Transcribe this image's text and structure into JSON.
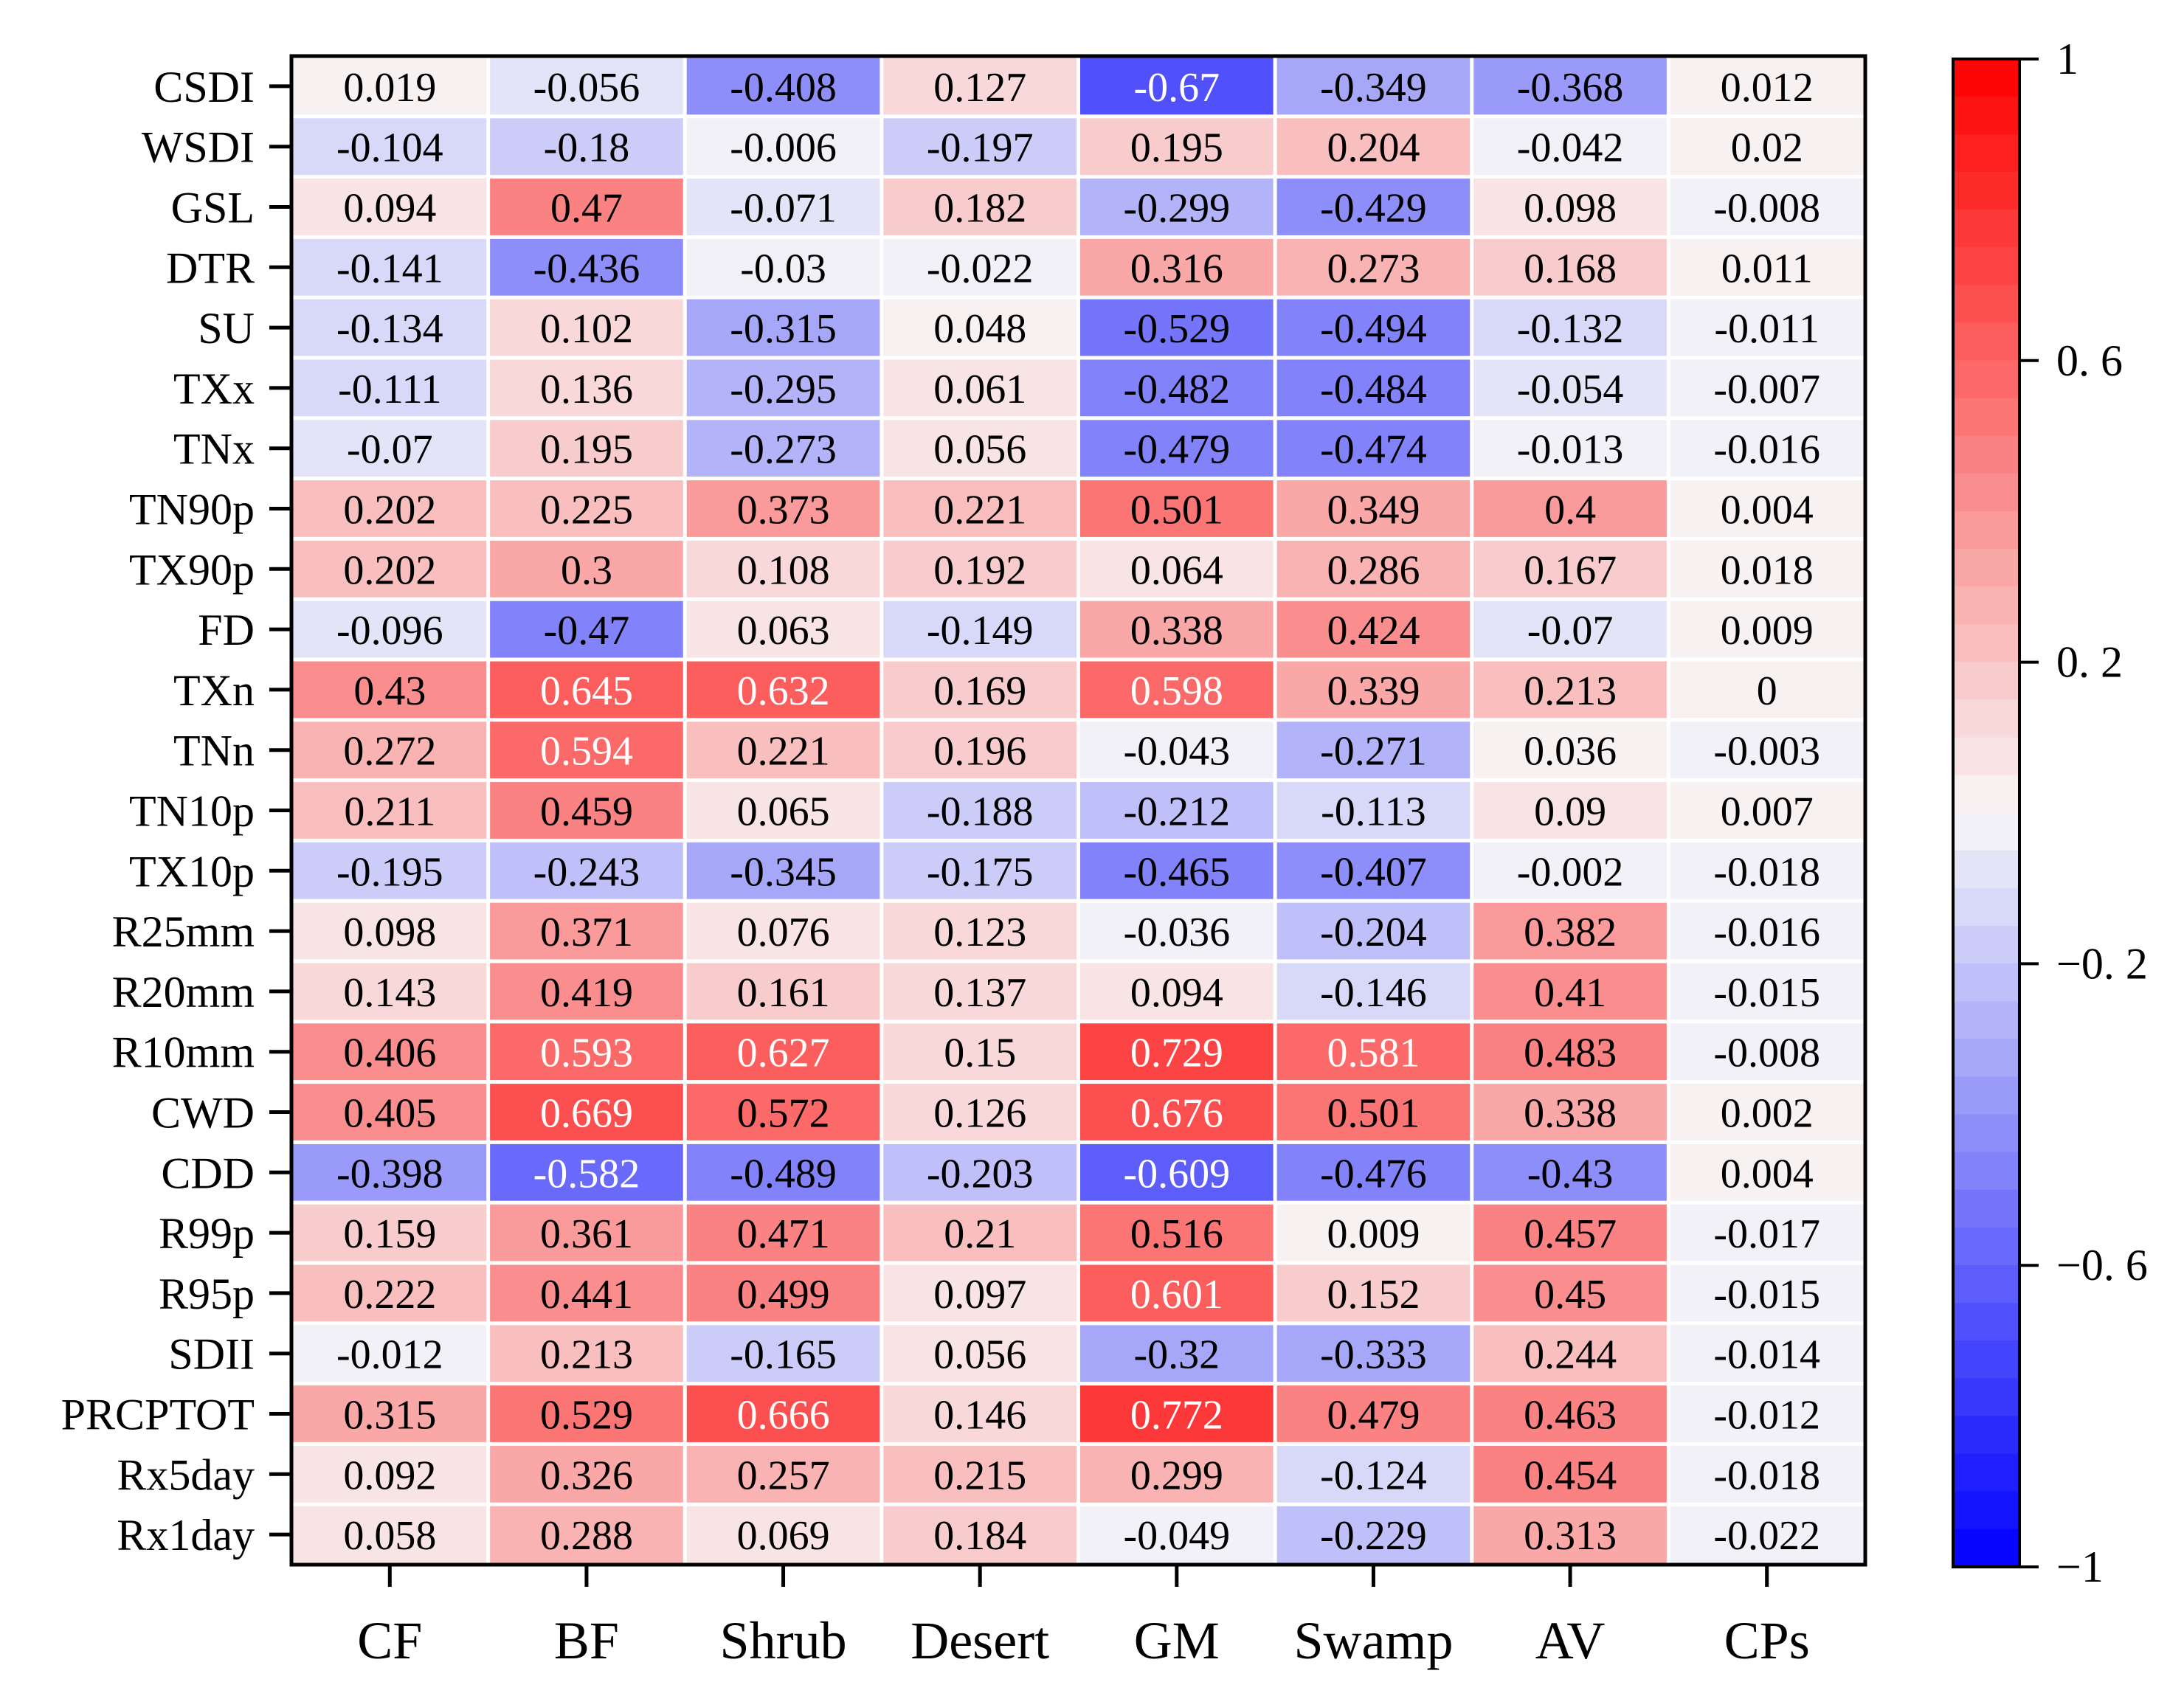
{
  "chart_data": {
    "type": "heatmap",
    "title": "",
    "xlabel": "",
    "ylabel": "",
    "columns": [
      "CF",
      "BF",
      "Shrub",
      "Desert",
      "GM",
      "Swamp",
      "AV",
      "CPs"
    ],
    "rows": [
      "CSDI",
      "WSDI",
      "GSL",
      "DTR",
      "SU",
      "TXx",
      "TNx",
      "TN90p",
      "TX90p",
      "FD",
      "TXn",
      "TNn",
      "TN10p",
      "TX10p",
      "R25mm",
      "R20mm",
      "R10mm",
      "CWD",
      "CDD",
      "R99p",
      "R95p",
      "SDII",
      "PRCPTOT",
      "Rx5day",
      "Rx1day"
    ],
    "values": [
      [
        "0.019",
        "-0.056",
        "-0.408",
        "0.127",
        "-0.67",
        "-0.349",
        "-0.368",
        "0.012"
      ],
      [
        "-0.104",
        "-0.18",
        "-0.006",
        "-0.197",
        "0.195",
        "0.204",
        "-0.042",
        "0.02"
      ],
      [
        "0.094",
        "0.47",
        "-0.071",
        "0.182",
        "-0.299",
        "-0.429",
        "0.098",
        "-0.008"
      ],
      [
        "-0.141",
        "-0.436",
        "-0.03",
        "-0.022",
        "0.316",
        "0.273",
        "0.168",
        "0.011"
      ],
      [
        "-0.134",
        "0.102",
        "-0.315",
        "0.048",
        "-0.529",
        "-0.494",
        "-0.132",
        "-0.011"
      ],
      [
        "-0.111",
        "0.136",
        "-0.295",
        "0.061",
        "-0.482",
        "-0.484",
        "-0.054",
        "-0.007"
      ],
      [
        "-0.07",
        "0.195",
        "-0.273",
        "0.056",
        "-0.479",
        "-0.474",
        "-0.013",
        "-0.016"
      ],
      [
        "0.202",
        "0.225",
        "0.373",
        "0.221",
        "0.501",
        "0.349",
        "0.4",
        "0.004"
      ],
      [
        "0.202",
        "0.3",
        "0.108",
        "0.192",
        "0.064",
        "0.286",
        "0.167",
        "0.018"
      ],
      [
        "-0.096",
        "-0.47",
        "0.063",
        "-0.149",
        "0.338",
        "0.424",
        "-0.07",
        "0.009"
      ],
      [
        "0.43",
        "0.645",
        "0.632",
        "0.169",
        "0.598",
        "0.339",
        "0.213",
        "0"
      ],
      [
        "0.272",
        "0.594",
        "0.221",
        "0.196",
        "-0.043",
        "-0.271",
        "0.036",
        "-0.003"
      ],
      [
        "0.211",
        "0.459",
        "0.065",
        "-0.188",
        "-0.212",
        "-0.113",
        "0.09",
        "0.007"
      ],
      [
        "-0.195",
        "-0.243",
        "-0.345",
        "-0.175",
        "-0.465",
        "-0.407",
        "-0.002",
        "-0.018"
      ],
      [
        "0.098",
        "0.371",
        "0.076",
        "0.123",
        "-0.036",
        "-0.204",
        "0.382",
        "-0.016"
      ],
      [
        "0.143",
        "0.419",
        "0.161",
        "0.137",
        "0.094",
        "-0.146",
        "0.41",
        "-0.015"
      ],
      [
        "0.406",
        "0.593",
        "0.627",
        "0.15",
        "0.729",
        "0.581",
        "0.483",
        "-0.008"
      ],
      [
        "0.405",
        "0.669",
        "0.572",
        "0.126",
        "0.676",
        "0.501",
        "0.338",
        "0.002"
      ],
      [
        "-0.398",
        "-0.582",
        "-0.489",
        "-0.203",
        "-0.609",
        "-0.476",
        "-0.43",
        "0.004"
      ],
      [
        "0.159",
        "0.361",
        "0.471",
        "0.21",
        "0.516",
        "0.009",
        "0.457",
        "-0.017"
      ],
      [
        "0.222",
        "0.441",
        "0.499",
        "0.097",
        "0.601",
        "0.152",
        "0.45",
        "-0.015"
      ],
      [
        "-0.012",
        "0.213",
        "-0.165",
        "0.056",
        "-0.32",
        "-0.333",
        "0.244",
        "-0.014"
      ],
      [
        "0.315",
        "0.529",
        "0.666",
        "0.146",
        "0.772",
        "0.479",
        "0.463",
        "-0.012"
      ],
      [
        "0.092",
        "0.326",
        "0.257",
        "0.215",
        "0.299",
        "-0.124",
        "0.454",
        "-0.018"
      ],
      [
        "0.058",
        "0.288",
        "0.069",
        "0.184",
        "-0.049",
        "-0.229",
        "0.313",
        "-0.022"
      ]
    ],
    "colorbar": {
      "min": -1,
      "max": 1,
      "levels": 40,
      "ticks": [
        1,
        0.6,
        0.2,
        -0.2,
        -0.6,
        -1
      ],
      "tick_labels": [
        "1",
        "0. 6",
        "0. 2",
        "−0. 2",
        "−0. 6",
        "−1"
      ],
      "low_color": "#0000ff",
      "mid_color": "#f7f7f7",
      "high_color": "#ff0000",
      "placement": "right"
    },
    "grid": false
  }
}
